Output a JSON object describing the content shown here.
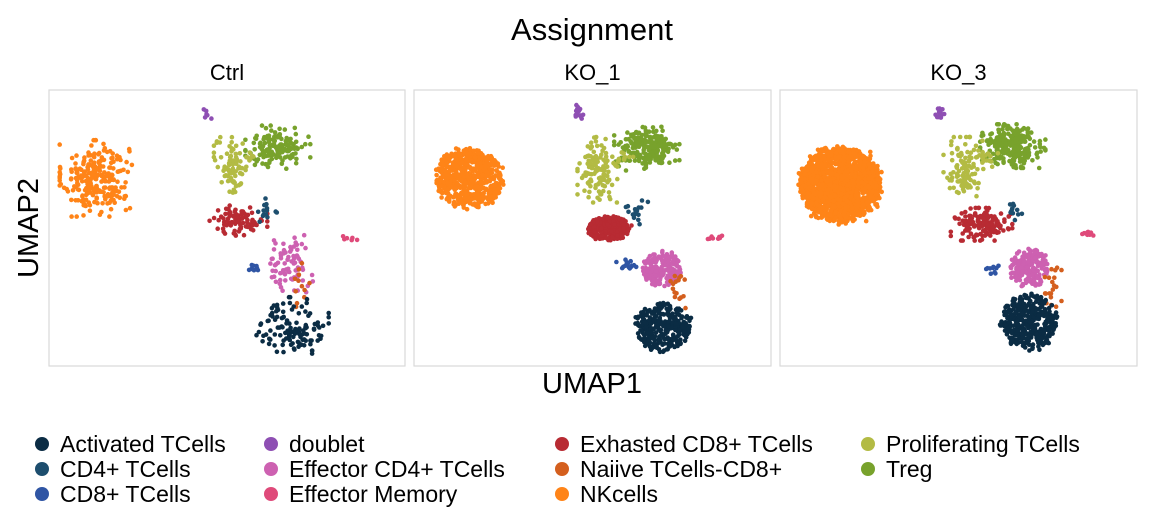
{
  "chart_data": {
    "type": "scatter",
    "title": "Assignment",
    "xlabel": "UMAP1",
    "ylabel": "UMAP2",
    "axis_ticks_shown": false,
    "grid": false,
    "xlim": [
      -10,
      10
    ],
    "ylim": [
      -10,
      10
    ],
    "legend_position": "bottom",
    "panels": [
      {
        "name": "Ctrl",
        "clusters": [
          {
            "group": "NKcells",
            "center": [
              -8.0,
              4.0
            ],
            "spread": [
              1.0,
              1.4
            ],
            "n": 260,
            "shape": "ellipse"
          },
          {
            "group": "doublet",
            "center": [
              -1.2,
              9.3
            ],
            "spread": [
              0.15,
              0.3
            ],
            "n": 6,
            "shape": "ellipse"
          },
          {
            "group": "Treg",
            "center": [
              3.1,
              6.5
            ],
            "spread": [
              0.9,
              0.8
            ],
            "n": 150,
            "shape": "ellipse"
          },
          {
            "group": "Proliferating TCells",
            "center": [
              0.3,
              4.9
            ],
            "spread": [
              0.5,
              1.1
            ],
            "n": 80,
            "shape": "ellipse"
          },
          {
            "group": "Proliferating TCells",
            "center": [
              1.6,
              5.8
            ],
            "spread": [
              0.3,
              0.25
            ],
            "n": 8,
            "shape": "ellipse"
          },
          {
            "group": "Exhasted CD8+ TCells",
            "center": [
              0.7,
              0.6
            ],
            "spread": [
              0.8,
              0.55
            ],
            "n": 90,
            "shape": "ellipse"
          },
          {
            "group": "CD4+ TCells",
            "center": [
              2.3,
              1.5
            ],
            "spread": [
              0.4,
              0.5
            ],
            "n": 14,
            "shape": "ellipse"
          },
          {
            "group": "Effector Memory",
            "center": [
              7.4,
              -0.8
            ],
            "spread": [
              0.25,
              0.1
            ],
            "n": 6,
            "shape": "ellipse"
          },
          {
            "group": "Effector CD4+ TCells",
            "center": [
              3.8,
              -3.0
            ],
            "spread": [
              0.65,
              1.1
            ],
            "n": 75,
            "shape": "ellipse"
          },
          {
            "group": "CD8+ TCells",
            "center": [
              1.6,
              -3.3
            ],
            "spread": [
              0.2,
              0.2
            ],
            "n": 8,
            "shape": "ellipse"
          },
          {
            "group": "Naiive TCells-CD8+",
            "center": [
              4.6,
              -4.6
            ],
            "spread": [
              0.25,
              0.8
            ],
            "n": 12,
            "shape": "ellipse"
          },
          {
            "group": "Activated TCells",
            "center": [
              4.0,
              -8.0
            ],
            "spread": [
              1.0,
              1.1
            ],
            "n": 120,
            "shape": "ellipse"
          }
        ]
      },
      {
        "name": "KO_1",
        "clusters": [
          {
            "group": "NKcells",
            "center": [
              -7.5,
              4.0
            ],
            "spread": [
              1.3,
              1.5
            ],
            "n": 650,
            "shape": "disk"
          },
          {
            "group": "doublet",
            "center": [
              -0.9,
              9.3
            ],
            "spread": [
              0.15,
              0.3
            ],
            "n": 14,
            "shape": "ellipse"
          },
          {
            "group": "Treg",
            "center": [
              3.3,
              6.4
            ],
            "spread": [
              0.9,
              0.8
            ],
            "n": 230,
            "shape": "ellipse"
          },
          {
            "group": "Proliferating TCells",
            "center": [
              0.3,
              4.7
            ],
            "spread": [
              0.55,
              1.2
            ],
            "n": 120,
            "shape": "ellipse"
          },
          {
            "group": "Proliferating TCells",
            "center": [
              1.7,
              5.6
            ],
            "spread": [
              0.35,
              0.3
            ],
            "n": 12,
            "shape": "ellipse"
          },
          {
            "group": "Exhasted CD8+ TCells",
            "center": [
              1.0,
              0.0
            ],
            "spread": [
              0.8,
              0.6
            ],
            "n": 280,
            "shape": "disk"
          },
          {
            "group": "CD4+ TCells",
            "center": [
              2.7,
              1.3
            ],
            "spread": [
              0.35,
              0.45
            ],
            "n": 16,
            "shape": "ellipse"
          },
          {
            "group": "Effector Memory",
            "center": [
              7.4,
              -0.8
            ],
            "spread": [
              0.25,
              0.1
            ],
            "n": 8,
            "shape": "ellipse"
          },
          {
            "group": "Effector CD4+ TCells",
            "center": [
              4.2,
              -3.3
            ],
            "spread": [
              0.75,
              0.9
            ],
            "n": 180,
            "shape": "disk"
          },
          {
            "group": "CD8+ TCells",
            "center": [
              2.1,
              -3.0
            ],
            "spread": [
              0.3,
              0.2
            ],
            "n": 14,
            "shape": "ellipse"
          },
          {
            "group": "Naiive TCells-CD8+",
            "center": [
              5.3,
              -4.7
            ],
            "spread": [
              0.25,
              0.8
            ],
            "n": 16,
            "shape": "ellipse"
          },
          {
            "group": "Activated TCells",
            "center": [
              4.3,
              -8.0
            ],
            "spread": [
              1.05,
              1.2
            ],
            "n": 320,
            "shape": "disk"
          }
        ]
      },
      {
        "name": "KO_3",
        "clusters": [
          {
            "group": "NKcells",
            "center": [
              -7.2,
              3.5
            ],
            "spread": [
              1.55,
              1.9
            ],
            "n": 1700,
            "shape": "disk"
          },
          {
            "group": "doublet",
            "center": [
              -1.2,
              9.3
            ],
            "spread": [
              0.15,
              0.3
            ],
            "n": 14,
            "shape": "ellipse"
          },
          {
            "group": "Treg",
            "center": [
              3.3,
              6.6
            ],
            "spread": [
              0.9,
              0.8
            ],
            "n": 260,
            "shape": "ellipse"
          },
          {
            "group": "Proliferating TCells",
            "center": [
              0.3,
              4.7
            ],
            "spread": [
              0.55,
              1.2
            ],
            "n": 110,
            "shape": "ellipse"
          },
          {
            "group": "Proliferating TCells",
            "center": [
              1.7,
              5.6
            ],
            "spread": [
              0.35,
              0.3
            ],
            "n": 12,
            "shape": "ellipse"
          },
          {
            "group": "Exhasted CD8+ TCells",
            "center": [
              1.4,
              0.3
            ],
            "spread": [
              0.85,
              0.6
            ],
            "n": 140,
            "shape": "ellipse"
          },
          {
            "group": "CD4+ TCells",
            "center": [
              3.4,
              1.4
            ],
            "spread": [
              0.3,
              0.45
            ],
            "n": 12,
            "shape": "ellipse"
          },
          {
            "group": "Effector Memory",
            "center": [
              8.0,
              -0.5
            ],
            "spread": [
              0.25,
              0.1
            ],
            "n": 8,
            "shape": "ellipse"
          },
          {
            "group": "Effector CD4+ TCells",
            "center": [
              4.3,
              -3.2
            ],
            "spread": [
              0.75,
              1.0
            ],
            "n": 200,
            "shape": "disk"
          },
          {
            "group": "CD8+ TCells",
            "center": [
              2.2,
              -3.3
            ],
            "spread": [
              0.25,
              0.2
            ],
            "n": 10,
            "shape": "ellipse"
          },
          {
            "group": "Naiive TCells-CD8+",
            "center": [
              5.6,
              -4.6
            ],
            "spread": [
              0.3,
              0.8
            ],
            "n": 20,
            "shape": "ellipse"
          },
          {
            "group": "Activated TCells",
            "center": [
              4.3,
              -7.6
            ],
            "spread": [
              1.1,
              1.4
            ],
            "n": 360,
            "shape": "disk"
          }
        ]
      }
    ],
    "legend": [
      {
        "label": "Activated TCells",
        "color": "#0b2c44"
      },
      {
        "label": "CD4+ TCells",
        "color": "#1d4e6e"
      },
      {
        "label": "CD8+ TCells",
        "color": "#2f55a4"
      },
      {
        "label": "doublet",
        "color": "#8e4fb3"
      },
      {
        "label": "Effector CD4+ TCells",
        "color": "#cd61b1"
      },
      {
        "label": "Effector Memory",
        "color": "#df4a7a"
      },
      {
        "label": "Exhasted CD8+ TCells",
        "color": "#b82b33"
      },
      {
        "label": "Naiive TCells-CD8+",
        "color": "#d45f1e"
      },
      {
        "label": "NKcells",
        "color": "#ff8418"
      },
      {
        "label": "Proliferating TCells",
        "color": "#b3bb44"
      },
      {
        "label": "Treg",
        "color": "#78a22c"
      }
    ]
  }
}
